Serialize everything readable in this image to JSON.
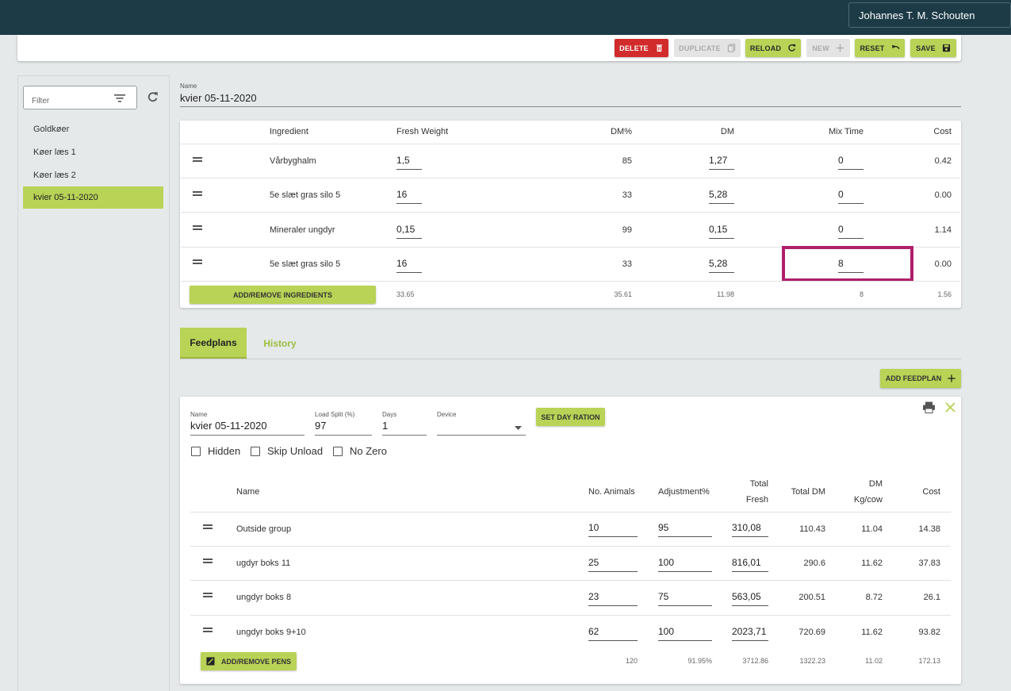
{
  "header": {
    "user_name": "Johannes T. M. Schouten"
  },
  "toolbar": {
    "delete": "DELETE",
    "duplicate": "DUPLICATE",
    "reload": "RELOAD",
    "new": "NEW",
    "reset": "RESET",
    "save": "SAVE"
  },
  "sidebar": {
    "filter_placeholder": "Filter",
    "items": [
      {
        "label": "Goldkøer"
      },
      {
        "label": "Køer læs 1"
      },
      {
        "label": "Køer læs 2"
      },
      {
        "label": "kvier 05-11-2020",
        "active": true
      }
    ]
  },
  "recipe": {
    "name_label": "Name",
    "name": "kvier 05-11-2020",
    "columns": [
      "Ingredient",
      "Fresh Weight",
      "DM%",
      "DM",
      "Mix Time",
      "Cost"
    ],
    "rows": [
      {
        "ingredient": "Vårbyghalm",
        "fresh_weight": "1,5",
        "dm_pct": "85",
        "dm": "1,27",
        "mix_time": "0",
        "cost": "0.42"
      },
      {
        "ingredient": "5e slæt gras silo 5",
        "fresh_weight": "16",
        "dm_pct": "33",
        "dm": "5,28",
        "mix_time": "0",
        "cost": "0.00"
      },
      {
        "ingredient": "Mineraler ungdyr",
        "fresh_weight": "0,15",
        "dm_pct": "99",
        "dm": "0,15",
        "mix_time": "0",
        "cost": "1.14"
      },
      {
        "ingredient": "5e slæt gras silo 5",
        "fresh_weight": "16",
        "dm_pct": "33",
        "dm": "5,28",
        "mix_time": "8",
        "cost": "0.00"
      }
    ],
    "add_remove_label": "ADD/REMOVE INGREDIENTS",
    "totals": {
      "fresh_weight": "33.65",
      "dm_pct": "35.61",
      "dm": "11.98",
      "mix_time": "8",
      "cost": "1.56"
    }
  },
  "tabs": [
    {
      "label": "Feedplans",
      "active": true
    },
    {
      "label": "History"
    }
  ],
  "add_feedplan_label": "ADD FEEDPLAN",
  "feedplan": {
    "name_label": "Name",
    "name": "kvier 05-11-2020",
    "load_split_label": "Load Split (%)",
    "load_split": "97",
    "days_label": "Days",
    "days": "1",
    "device_label": "Device",
    "device": "",
    "set_day_ration_label": "SET DAY RATION",
    "checkboxes": [
      {
        "label": "Hidden"
      },
      {
        "label": "Skip Unload"
      },
      {
        "label": "No Zero"
      }
    ],
    "columns": {
      "name": "Name",
      "animals": "No. Animals",
      "adjustment": "Adjustment%",
      "total_fresh_1": "Total",
      "total_fresh_2": "Fresh",
      "total_dm": "Total DM",
      "dm_kg_1": "DM",
      "dm_kg_2": "Kg/cow",
      "cost": "Cost"
    },
    "rows": [
      {
        "name": "Outside group",
        "animals": "10",
        "adjustment": "95",
        "total_fresh": "310,08",
        "total_dm": "110.43",
        "dm_kg": "11.04",
        "cost": "14.38"
      },
      {
        "name": "ugdyr boks 11",
        "animals": "25",
        "adjustment": "100",
        "total_fresh": "816,01",
        "total_dm": "290.6",
        "dm_kg": "11.62",
        "cost": "37.83"
      },
      {
        "name": "ungdyr boks 8",
        "animals": "23",
        "adjustment": "75",
        "total_fresh": "563,05",
        "total_dm": "200.51",
        "dm_kg": "8.72",
        "cost": "26.1"
      },
      {
        "name": "ungdyr boks 9+10",
        "animals": "62",
        "adjustment": "100",
        "total_fresh": "2023,71",
        "total_dm": "720.69",
        "dm_kg": "11.62",
        "cost": "93.82"
      }
    ],
    "add_remove_pens_label": "ADD/REMOVE PENS",
    "totals": {
      "animals": "120",
      "adjustment": "91.95%",
      "total_fresh": "3712.86",
      "total_dm": "1322.23",
      "dm_kg": "11.02",
      "cost": "172.13"
    }
  },
  "colors": {
    "topbar": "#1c3b47",
    "accent_green": "#b8d356",
    "delete_red": "#d22b2b",
    "highlight": "#b0206a"
  }
}
